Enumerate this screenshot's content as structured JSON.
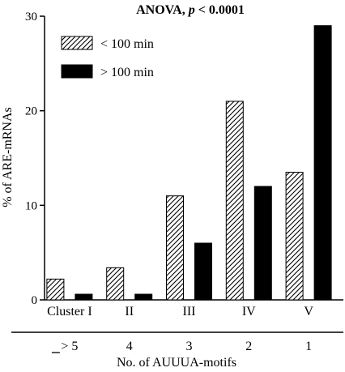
{
  "chart_data": {
    "type": "bar",
    "title_prefix": "ANOVA, ",
    "title_p": "p",
    "title_suffix": " < 0.0001",
    "ylabel": "% of ARE-mRNAs",
    "xlabel": "No. of AUUUA-motifs",
    "categories": [
      "Cluster I",
      "II",
      "III",
      "IV",
      "V"
    ],
    "motif_labels": [
      "> 5",
      "4",
      "3",
      "2",
      "1"
    ],
    "series": [
      {
        "name": "< 100 min",
        "pattern": "hatched",
        "values": [
          2.2,
          3.4,
          11.0,
          21.0,
          13.5
        ]
      },
      {
        "name": "> 100 min",
        "pattern": "solid",
        "values": [
          0.6,
          0.6,
          6.0,
          12.0,
          29.0
        ]
      }
    ],
    "y_ticks": [
      0,
      10,
      20,
      30
    ],
    "ylim": [
      0,
      30
    ],
    "grid": false,
    "legend_position": "top-left"
  }
}
